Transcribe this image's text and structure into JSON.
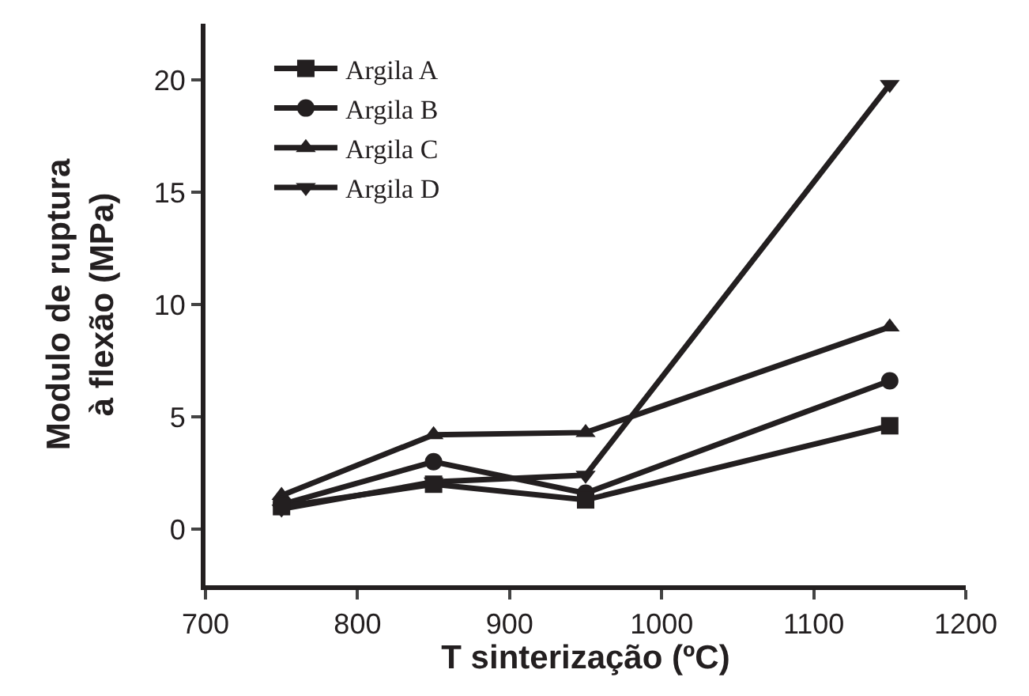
{
  "chart_data": {
    "type": "line",
    "xlabel": "T sinterização (ºC)",
    "ylabel": "Modulo de ruptura\nà flexão (MPa)",
    "xlim": [
      700,
      1200
    ],
    "xticks": [
      700,
      800,
      900,
      1000,
      1100,
      1200
    ],
    "ylim": [
      -2.5,
      22.5
    ],
    "yticks": [
      0,
      5,
      10,
      15,
      20
    ],
    "grid": false,
    "legend": "top left",
    "line_style": "solid",
    "series": [
      {
        "name": "Argila A",
        "color": "#231f20",
        "marker": "square",
        "x": [
          750,
          850,
          950,
          1150
        ],
        "values": [
          1.0,
          2.0,
          1.3,
          4.6
        ]
      },
      {
        "name": "Argila B",
        "color": "#231f20",
        "marker": "circle",
        "x": [
          750,
          850,
          950,
          1150
        ],
        "values": [
          1.1,
          3.0,
          1.6,
          6.6
        ]
      },
      {
        "name": "Argila C",
        "color": "#231f20",
        "marker": "triangle",
        "x": [
          750,
          850,
          950,
          1150
        ],
        "values": [
          1.5,
          4.2,
          4.3,
          9.0
        ]
      },
      {
        "name": "Argila D",
        "color": "#231f20",
        "marker": "triangle-down",
        "x": [
          750,
          850,
          950,
          1150
        ],
        "values": [
          0.9,
          2.1,
          2.4,
          19.8
        ]
      }
    ]
  }
}
